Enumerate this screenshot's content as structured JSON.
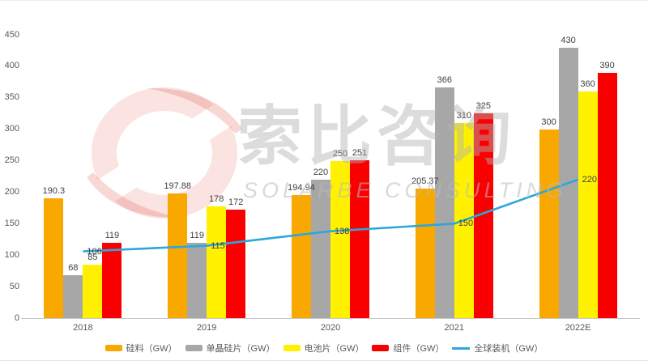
{
  "watermark": {
    "cn": "索比咨询",
    "en": "SOLARBE CONSULTING",
    "logo_color": "#E2504C"
  },
  "chart_data": {
    "type": "bar+line",
    "title": "",
    "xlabel": "",
    "ylabel": "",
    "categories": [
      "2018",
      "2019",
      "2020",
      "2021",
      "2022E"
    ],
    "series": [
      {
        "key": "silicon",
        "name": "硅料（GW）",
        "type": "bar",
        "color": "#F9A800",
        "values": [
          190.3,
          197.88,
          194.94,
          205.37,
          300
        ]
      },
      {
        "key": "mono-wafer",
        "name": "单晶硅片（GW）",
        "type": "bar",
        "color": "#A7A7A7",
        "values": [
          68,
          119,
          220,
          366,
          430
        ]
      },
      {
        "key": "cell",
        "name": "电池片（GW）",
        "type": "bar",
        "color": "#FFF100",
        "values": [
          85,
          178,
          250,
          310,
          360
        ]
      },
      {
        "key": "module",
        "name": "组件（GW）",
        "type": "bar",
        "color": "#FA0000",
        "values": [
          119,
          172,
          251,
          325,
          390
        ]
      },
      {
        "key": "global-installs",
        "name": "全球装机（GW）",
        "type": "line",
        "color": "#2BA7DC",
        "values": [
          106,
          115,
          138,
          150,
          220
        ]
      }
    ],
    "ylim": [
      0,
      450
    ],
    "ytick_step": 50,
    "yticks": [
      0,
      50,
      100,
      150,
      200,
      250,
      300,
      350,
      400,
      450
    ],
    "grid": false,
    "legend_position": "bottom"
  }
}
